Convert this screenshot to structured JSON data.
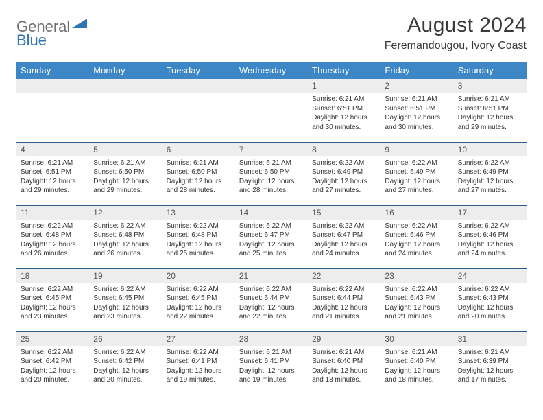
{
  "logo": {
    "text1": "General",
    "text2": "Blue"
  },
  "title": {
    "month": "August 2024",
    "location": "Feremandougou, Ivory Coast"
  },
  "colors": {
    "header_bg": "#3d87c6",
    "header_text": "#ffffff",
    "daynum_bg": "#ededed",
    "row_border": "#2c5d8a",
    "logo_gray": "#6f6f6f",
    "logo_blue": "#2f75b5"
  },
  "weekdays": [
    "Sunday",
    "Monday",
    "Tuesday",
    "Wednesday",
    "Thursday",
    "Friday",
    "Saturday"
  ],
  "leading_blanks": 4,
  "days": [
    {
      "n": 1,
      "rise": "6:21 AM",
      "set": "6:51 PM",
      "dl": "12 hours and 30 minutes."
    },
    {
      "n": 2,
      "rise": "6:21 AM",
      "set": "6:51 PM",
      "dl": "12 hours and 30 minutes."
    },
    {
      "n": 3,
      "rise": "6:21 AM",
      "set": "6:51 PM",
      "dl": "12 hours and 29 minutes."
    },
    {
      "n": 4,
      "rise": "6:21 AM",
      "set": "6:51 PM",
      "dl": "12 hours and 29 minutes."
    },
    {
      "n": 5,
      "rise": "6:21 AM",
      "set": "6:50 PM",
      "dl": "12 hours and 29 minutes."
    },
    {
      "n": 6,
      "rise": "6:21 AM",
      "set": "6:50 PM",
      "dl": "12 hours and 28 minutes."
    },
    {
      "n": 7,
      "rise": "6:21 AM",
      "set": "6:50 PM",
      "dl": "12 hours and 28 minutes."
    },
    {
      "n": 8,
      "rise": "6:22 AM",
      "set": "6:49 PM",
      "dl": "12 hours and 27 minutes."
    },
    {
      "n": 9,
      "rise": "6:22 AM",
      "set": "6:49 PM",
      "dl": "12 hours and 27 minutes."
    },
    {
      "n": 10,
      "rise": "6:22 AM",
      "set": "6:49 PM",
      "dl": "12 hours and 27 minutes."
    },
    {
      "n": 11,
      "rise": "6:22 AM",
      "set": "6:48 PM",
      "dl": "12 hours and 26 minutes."
    },
    {
      "n": 12,
      "rise": "6:22 AM",
      "set": "6:48 PM",
      "dl": "12 hours and 26 minutes."
    },
    {
      "n": 13,
      "rise": "6:22 AM",
      "set": "6:48 PM",
      "dl": "12 hours and 25 minutes."
    },
    {
      "n": 14,
      "rise": "6:22 AM",
      "set": "6:47 PM",
      "dl": "12 hours and 25 minutes."
    },
    {
      "n": 15,
      "rise": "6:22 AM",
      "set": "6:47 PM",
      "dl": "12 hours and 24 minutes."
    },
    {
      "n": 16,
      "rise": "6:22 AM",
      "set": "6:46 PM",
      "dl": "12 hours and 24 minutes."
    },
    {
      "n": 17,
      "rise": "6:22 AM",
      "set": "6:46 PM",
      "dl": "12 hours and 24 minutes."
    },
    {
      "n": 18,
      "rise": "6:22 AM",
      "set": "6:45 PM",
      "dl": "12 hours and 23 minutes."
    },
    {
      "n": 19,
      "rise": "6:22 AM",
      "set": "6:45 PM",
      "dl": "12 hours and 23 minutes."
    },
    {
      "n": 20,
      "rise": "6:22 AM",
      "set": "6:45 PM",
      "dl": "12 hours and 22 minutes."
    },
    {
      "n": 21,
      "rise": "6:22 AM",
      "set": "6:44 PM",
      "dl": "12 hours and 22 minutes."
    },
    {
      "n": 22,
      "rise": "6:22 AM",
      "set": "6:44 PM",
      "dl": "12 hours and 21 minutes."
    },
    {
      "n": 23,
      "rise": "6:22 AM",
      "set": "6:43 PM",
      "dl": "12 hours and 21 minutes."
    },
    {
      "n": 24,
      "rise": "6:22 AM",
      "set": "6:43 PM",
      "dl": "12 hours and 20 minutes."
    },
    {
      "n": 25,
      "rise": "6:22 AM",
      "set": "6:42 PM",
      "dl": "12 hours and 20 minutes."
    },
    {
      "n": 26,
      "rise": "6:22 AM",
      "set": "6:42 PM",
      "dl": "12 hours and 20 minutes."
    },
    {
      "n": 27,
      "rise": "6:22 AM",
      "set": "6:41 PM",
      "dl": "12 hours and 19 minutes."
    },
    {
      "n": 28,
      "rise": "6:21 AM",
      "set": "6:41 PM",
      "dl": "12 hours and 19 minutes."
    },
    {
      "n": 29,
      "rise": "6:21 AM",
      "set": "6:40 PM",
      "dl": "12 hours and 18 minutes."
    },
    {
      "n": 30,
      "rise": "6:21 AM",
      "set": "6:40 PM",
      "dl": "12 hours and 18 minutes."
    },
    {
      "n": 31,
      "rise": "6:21 AM",
      "set": "6:39 PM",
      "dl": "12 hours and 17 minutes."
    }
  ],
  "labels": {
    "sunrise": "Sunrise: ",
    "sunset": "Sunset: ",
    "daylight": "Daylight: "
  }
}
